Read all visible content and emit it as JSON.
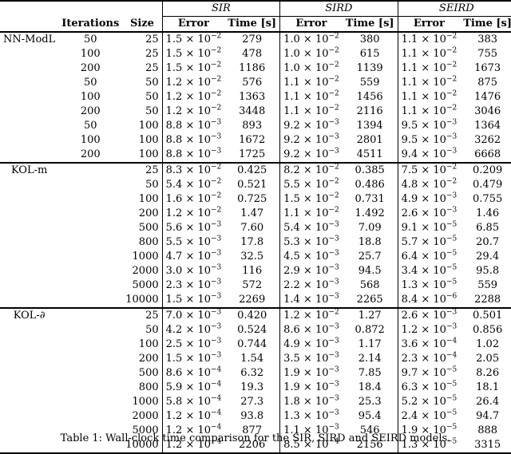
{
  "header": {
    "col_iterations": "Iterations",
    "col_size": "Size",
    "models": [
      "SIR",
      "SIRD",
      "SEIRD"
    ],
    "col_error": "Error",
    "col_time": "Time [s]"
  },
  "groups": [
    {
      "method": "NN-ModL",
      "rows": [
        {
          "iter": "50",
          "size": "25",
          "cells": [
            [
              "1.5",
              "−2",
              "279"
            ],
            [
              "1.0",
              "−2",
              "380"
            ],
            [
              "1.1",
              "−2",
              "383"
            ]
          ]
        },
        {
          "iter": "100",
          "size": "25",
          "cells": [
            [
              "1.5",
              "−2",
              "478"
            ],
            [
              "1.0",
              "−2",
              "615"
            ],
            [
              "1.1",
              "−2",
              "755"
            ]
          ]
        },
        {
          "iter": "200",
          "size": "25",
          "cells": [
            [
              "1.5",
              "−2",
              "1186"
            ],
            [
              "1.0",
              "−2",
              "1139"
            ],
            [
              "1.1",
              "−2",
              "1673"
            ]
          ]
        },
        {
          "iter": "50",
          "size": "50",
          "cells": [
            [
              "1.2",
              "−2",
              "576"
            ],
            [
              "1.1",
              "−2",
              "559"
            ],
            [
              "1.1",
              "−2",
              "875"
            ]
          ]
        },
        {
          "iter": "100",
          "size": "50",
          "cells": [
            [
              "1.2",
              "−2",
              "1363"
            ],
            [
              "1.1",
              "−2",
              "1456"
            ],
            [
              "1.1",
              "−2",
              "1476"
            ]
          ]
        },
        {
          "iter": "200",
          "size": "50",
          "cells": [
            [
              "1.2",
              "−2",
              "3448"
            ],
            [
              "1.1",
              "−2",
              "2116"
            ],
            [
              "1.1",
              "−2",
              "3046"
            ]
          ]
        },
        {
          "iter": "50",
          "size": "100",
          "cells": [
            [
              "8.8",
              "−3",
              "893"
            ],
            [
              "9.2",
              "−3",
              "1394"
            ],
            [
              "9.5",
              "−3",
              "1364"
            ]
          ]
        },
        {
          "iter": "100",
          "size": "100",
          "cells": [
            [
              "8.8",
              "−3",
              "1672"
            ],
            [
              "9.2",
              "−3",
              "2801"
            ],
            [
              "9.5",
              "−3",
              "3262"
            ]
          ]
        },
        {
          "iter": "200",
          "size": "100",
          "cells": [
            [
              "8.8",
              "−3",
              "1725"
            ],
            [
              "9.2",
              "−3",
              "4511"
            ],
            [
              "9.4",
              "−3",
              "6668"
            ]
          ]
        }
      ]
    },
    {
      "method": "KOL-m",
      "rows": [
        {
          "iter": "",
          "size": "25",
          "cells": [
            [
              "8.3",
              "−2",
              "0.425"
            ],
            [
              "8.2",
              "−2",
              "0.385"
            ],
            [
              "7.5",
              "−2",
              "0.209"
            ]
          ]
        },
        {
          "iter": "",
          "size": "50",
          "cells": [
            [
              "5.4",
              "−2",
              "0.521"
            ],
            [
              "5.5",
              "−2",
              "0.486"
            ],
            [
              "4.8",
              "−2",
              "0.479"
            ]
          ]
        },
        {
          "iter": "",
          "size": "100",
          "cells": [
            [
              "1.6",
              "−2",
              "0.725"
            ],
            [
              "1.5",
              "−2",
              "0.731"
            ],
            [
              "4.9",
              "−3",
              "0.755"
            ]
          ]
        },
        {
          "iter": "",
          "size": "200",
          "cells": [
            [
              "1.2",
              "−2",
              "1.47"
            ],
            [
              "1.1",
              "−2",
              "1.492"
            ],
            [
              "2.6",
              "−3",
              "1.46"
            ]
          ]
        },
        {
          "iter": "",
          "size": "500",
          "cells": [
            [
              "5.6",
              "−3",
              "7.60"
            ],
            [
              "5.4",
              "−3",
              "7.09"
            ],
            [
              "9.1",
              "−5",
              "6.85"
            ]
          ]
        },
        {
          "iter": "",
          "size": "800",
          "cells": [
            [
              "5.5",
              "−3",
              "17.8"
            ],
            [
              "5.3",
              "−3",
              "18.8"
            ],
            [
              "5.7",
              "−5",
              "20.7"
            ]
          ]
        },
        {
          "iter": "",
          "size": "1000",
          "cells": [
            [
              "4.7",
              "−3",
              "32.5"
            ],
            [
              "4.5",
              "−3",
              "25.7"
            ],
            [
              "6.4",
              "−5",
              "29.4"
            ]
          ]
        },
        {
          "iter": "",
          "size": "2000",
          "cells": [
            [
              "3.0",
              "−3",
              "116"
            ],
            [
              "2.9",
              "−3",
              "94.5"
            ],
            [
              "3.4",
              "−5",
              "95.8"
            ]
          ]
        },
        {
          "iter": "",
          "size": "5000",
          "cells": [
            [
              "2.3",
              "−3",
              "572"
            ],
            [
              "2.2",
              "−3",
              "568"
            ],
            [
              "1.3",
              "−5",
              "559"
            ]
          ]
        },
        {
          "iter": "",
          "size": "10000",
          "cells": [
            [
              "1.5",
              "−3",
              "2269"
            ],
            [
              "1.4",
              "−3",
              "2265"
            ],
            [
              "8.4",
              "−6",
              "2288"
            ]
          ]
        }
      ]
    },
    {
      "method": "KOL-∂",
      "rows": [
        {
          "iter": "",
          "size": "25",
          "cells": [
            [
              "7.0",
              "−3",
              "0.420"
            ],
            [
              "1.2",
              "−2",
              "1.27"
            ],
            [
              "2.6",
              "−3",
              "0.501"
            ]
          ]
        },
        {
          "iter": "",
          "size": "50",
          "cells": [
            [
              "4.2",
              "−3",
              "0.524"
            ],
            [
              "8.6",
              "−3",
              "0.872"
            ],
            [
              "1.2",
              "−3",
              "0.856"
            ]
          ]
        },
        {
          "iter": "",
          "size": "100",
          "cells": [
            [
              "2.5",
              "−3",
              "0.744"
            ],
            [
              "4.9",
              "−3",
              "1.17"
            ],
            [
              "3.6",
              "−4",
              "1.02"
            ]
          ]
        },
        {
          "iter": "",
          "size": "200",
          "cells": [
            [
              "1.5",
              "−3",
              "1.54"
            ],
            [
              "3.5",
              "−3",
              "2.14"
            ],
            [
              "2.3",
              "−4",
              "2.05"
            ]
          ]
        },
        {
          "iter": "",
          "size": "500",
          "cells": [
            [
              "8.6",
              "−4",
              "6.32"
            ],
            [
              "1.9",
              "−3",
              "7.85"
            ],
            [
              "9.7",
              "−5",
              "8.26"
            ]
          ]
        },
        {
          "iter": "",
          "size": "800",
          "cells": [
            [
              "5.9",
              "−4",
              "19.3"
            ],
            [
              "1.9",
              "−3",
              "18.4"
            ],
            [
              "6.3",
              "−5",
              "18.1"
            ]
          ]
        },
        {
          "iter": "",
          "size": "1000",
          "cells": [
            [
              "5.8",
              "−4",
              "27.3"
            ],
            [
              "1.8",
              "−3",
              "25.3"
            ],
            [
              "5.2",
              "−5",
              "26.4"
            ]
          ]
        },
        {
          "iter": "",
          "size": "2000",
          "cells": [
            [
              "1.2",
              "−4",
              "93.8"
            ],
            [
              "1.3",
              "−3",
              "95.4"
            ],
            [
              "2.4",
              "−5",
              "94.7"
            ]
          ]
        },
        {
          "iter": "",
          "size": "5000",
          "cells": [
            [
              "1.2",
              "−4",
              "877"
            ],
            [
              "1.1",
              "−3",
              "546"
            ],
            [
              "1.9",
              "−5",
              "888"
            ]
          ]
        },
        {
          "iter": "",
          "size": "10000",
          "cells": [
            [
              "1.2",
              "−4",
              "2206"
            ],
            [
              "8.5",
              "−4",
              "2156"
            ],
            [
              "1.3",
              "−5",
              "3315"
            ]
          ]
        }
      ]
    }
  ],
  "caption": "Table 1: Wall-clock time comparison for the SIR, SIRD and SEIRD models."
}
